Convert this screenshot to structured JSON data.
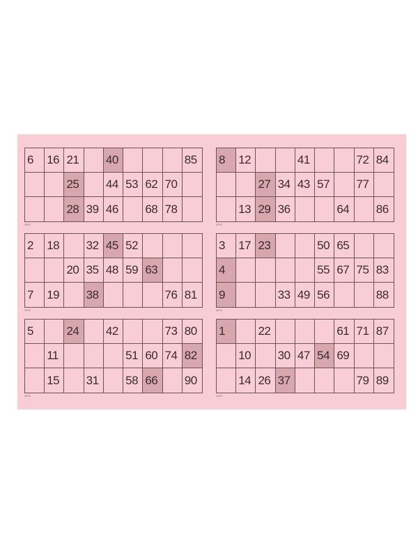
{
  "colors": {
    "paper": "#f9cdd6",
    "marked_cell": "#d8a7ae",
    "ink": "#3b2a2f"
  },
  "cards": [
    {
      "serial": "3001",
      "rows": [
        [
          6,
          16,
          21,
          null,
          40,
          null,
          null,
          null,
          85
        ],
        [
          null,
          null,
          25,
          null,
          44,
          53,
          62,
          70,
          null
        ],
        [
          null,
          null,
          28,
          39,
          46,
          null,
          68,
          78,
          null
        ]
      ],
      "marked": [
        40,
        25,
        28
      ]
    },
    {
      "serial": "3002",
      "rows": [
        [
          8,
          12,
          null,
          null,
          41,
          null,
          null,
          72,
          84
        ],
        [
          null,
          null,
          27,
          34,
          43,
          57,
          null,
          77,
          null
        ],
        [
          null,
          13,
          29,
          36,
          null,
          null,
          64,
          null,
          86
        ]
      ],
      "marked": [
        8,
        27,
        29
      ]
    },
    {
      "serial": "3003",
      "rows": [
        [
          2,
          18,
          null,
          32,
          45,
          52,
          null,
          null,
          null
        ],
        [
          null,
          null,
          20,
          35,
          48,
          59,
          63,
          null,
          null
        ],
        [
          7,
          19,
          null,
          38,
          null,
          null,
          null,
          76,
          81
        ]
      ],
      "marked": [
        45,
        63,
        38
      ]
    },
    {
      "serial": "3004",
      "rows": [
        [
          3,
          17,
          23,
          null,
          null,
          50,
          65,
          null,
          null
        ],
        [
          4,
          null,
          null,
          null,
          null,
          55,
          67,
          75,
          83
        ],
        [
          9,
          null,
          null,
          33,
          49,
          56,
          null,
          null,
          88
        ]
      ],
      "marked": [
        23,
        4,
        9
      ]
    },
    {
      "serial": "3005",
      "rows": [
        [
          5,
          null,
          24,
          null,
          42,
          null,
          null,
          73,
          80
        ],
        [
          null,
          11,
          null,
          null,
          null,
          51,
          60,
          74,
          82
        ],
        [
          null,
          15,
          null,
          31,
          null,
          58,
          66,
          null,
          90
        ]
      ],
      "marked": [
        24,
        82,
        66
      ]
    },
    {
      "serial": "3006",
      "rows": [
        [
          1,
          null,
          22,
          null,
          null,
          null,
          61,
          71,
          87
        ],
        [
          null,
          10,
          null,
          30,
          47,
          54,
          69,
          null,
          null
        ],
        [
          null,
          14,
          26,
          37,
          null,
          null,
          null,
          79,
          89
        ]
      ],
      "marked": [
        1,
        54,
        37
      ]
    }
  ]
}
